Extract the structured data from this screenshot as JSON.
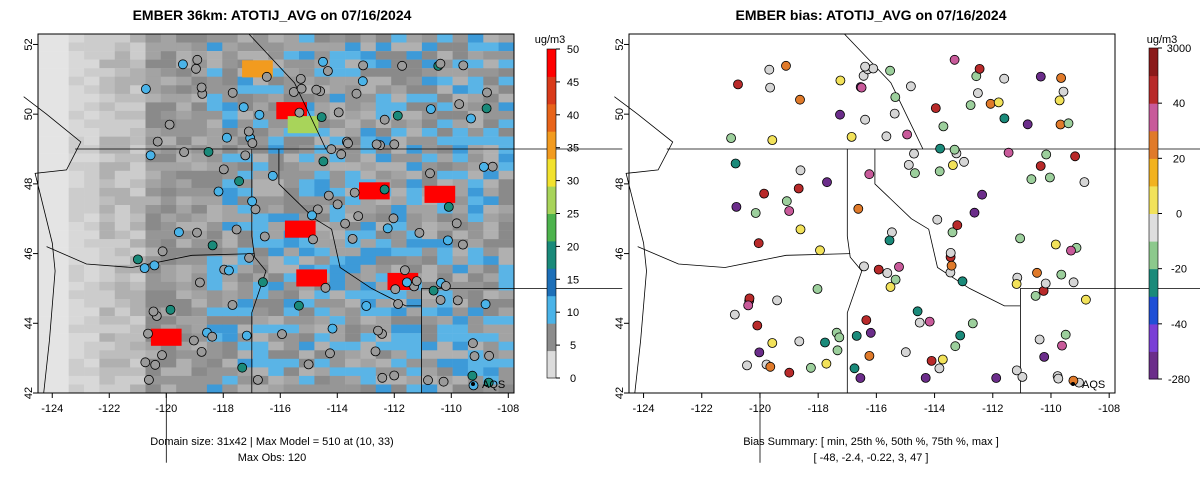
{
  "chart_data": [
    {
      "type": "heatmap",
      "title": "EMBER 36km: ATOTIJ_AVG on 07/16/2024",
      "xlabel": "",
      "ylabel": "",
      "xlim": [
        -124.5,
        -107.8
      ],
      "ylim": [
        42,
        52.3
      ],
      "x_ticks": [
        -124,
        -122,
        -120,
        -118,
        -116,
        -114,
        -112,
        -110,
        -108
      ],
      "x_tick_labels": [
        "-124",
        "-122",
        "-120",
        "-118",
        "-116",
        "-114",
        "-112",
        "-110",
        "-108"
      ],
      "y_ticks": [
        42,
        44,
        46,
        48,
        50,
        52
      ],
      "y_tick_labels": [
        "42",
        "44",
        "46",
        "48",
        "50",
        "52"
      ],
      "colorbar": {
        "label": "ug/m3",
        "range": [
          0,
          50
        ],
        "tick_labels": [
          "0",
          "5",
          "10",
          "15",
          "20",
          "25",
          "30",
          "35",
          "40",
          "45",
          "50"
        ],
        "colors": [
          "#dcdcdc",
          "#8c8c8c",
          "#4ab3e8",
          "#1d6fb8",
          "#1a8a7a",
          "#4db34d",
          "#a8d45a",
          "#f2e22e",
          "#f29b1f",
          "#e8641a",
          "#d93a1a",
          "#ff0000"
        ]
      },
      "hotspots": [
        {
          "lon": -116.8,
          "lat": 51.3,
          "value": 35
        },
        {
          "lon": -115.6,
          "lat": 50.1,
          "value": 50
        },
        {
          "lon": -115.2,
          "lat": 49.7,
          "value": 27
        },
        {
          "lon": -115.3,
          "lat": 46.7,
          "value": 50
        },
        {
          "lon": -114.9,
          "lat": 45.3,
          "value": 50
        },
        {
          "lon": -112.7,
          "lat": 47.8,
          "value": 50
        },
        {
          "lon": -110.4,
          "lat": 47.7,
          "value": 50
        },
        {
          "lon": -111.7,
          "lat": 45.2,
          "value": 50
        },
        {
          "lon": -120.0,
          "lat": 43.6,
          "value": 50
        }
      ],
      "annotation": "AQS",
      "footer": [
        "Domain size: 31x42 | Max Model = 510 at (10, 33)",
        "Max Obs: 120"
      ]
    },
    {
      "type": "scatter",
      "title": "EMBER bias: ATOTIJ_AVG on 07/16/2024",
      "xlabel": "",
      "ylabel": "",
      "xlim": [
        -124.5,
        -107.8
      ],
      "ylim": [
        42,
        52.3
      ],
      "x_ticks": [
        -124,
        -122,
        -120,
        -118,
        -116,
        -114,
        -112,
        -110,
        -108
      ],
      "x_tick_labels": [
        "-124",
        "-122",
        "-120",
        "-118",
        "-116",
        "-114",
        "-112",
        "-110",
        "-108"
      ],
      "y_ticks": [
        42,
        44,
        46,
        48,
        50,
        52
      ],
      "y_tick_labels": [
        "42",
        "44",
        "46",
        "48",
        "50",
        "52"
      ],
      "colorbar": {
        "label": "ug/m3",
        "tick_labels": [
          "3000",
          "40",
          "20",
          "0",
          "-20",
          "-40",
          "-280"
        ],
        "colors": [
          "#6b2d8a",
          "#7a3fd6",
          "#1f4fd6",
          "#1a8a7a",
          "#8cc98c",
          "#dedede",
          "#f2e25a",
          "#f2b21f",
          "#e07a2a",
          "#c85a9a",
          "#b82a2a",
          "#8b1a1a"
        ]
      },
      "annotation": "AQS",
      "bias_summary": {
        "label": "Bias Summary: [ min, 25th %, 50th %, 75th %, max ]",
        "values_text": "[ -48,   -2.4,   -0.22,   3,   47 ]",
        "values": [
          -48,
          -2.4,
          -0.22,
          3,
          47
        ]
      }
    }
  ]
}
